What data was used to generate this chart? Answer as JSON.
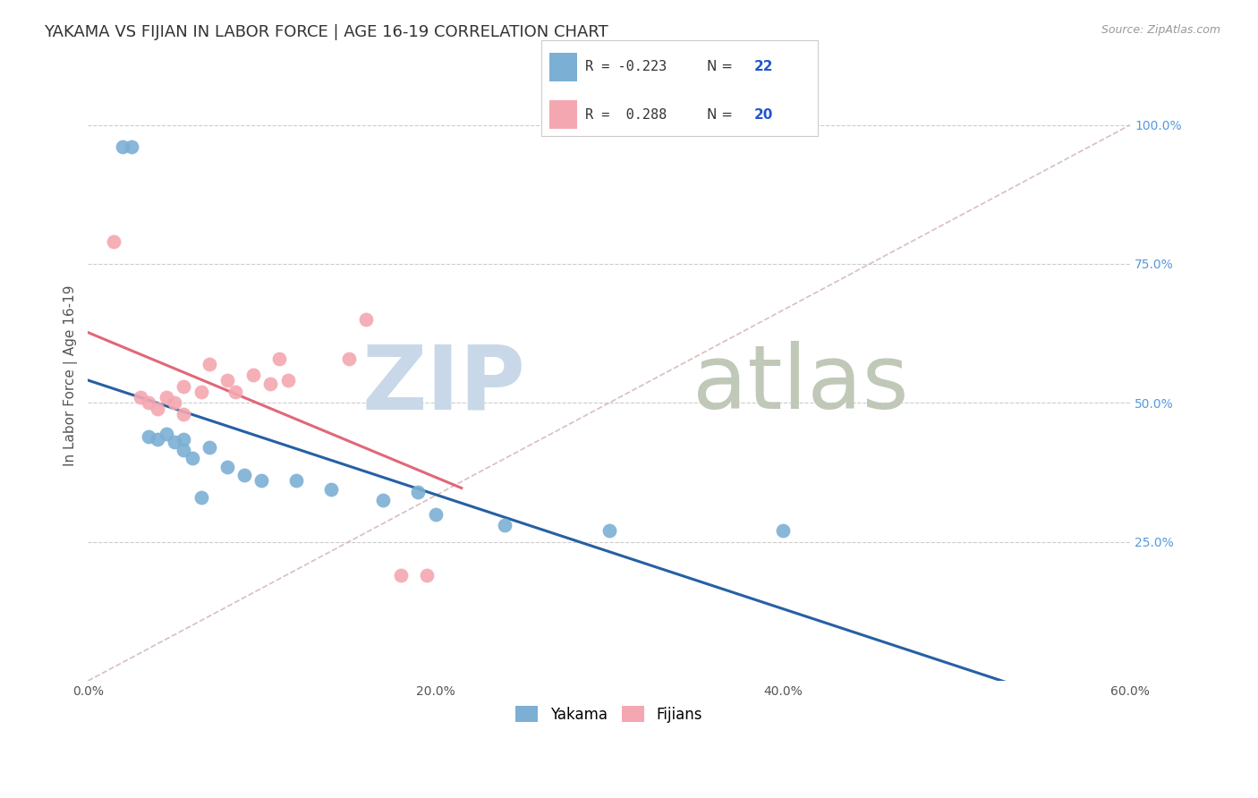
{
  "title": "YAKAMA VS FIJIAN IN LABOR FORCE | AGE 16-19 CORRELATION CHART",
  "source": "Source: ZipAtlas.com",
  "xlabel_vals": [
    0.0,
    20.0,
    40.0,
    60.0
  ],
  "ylabel_vals": [
    25.0,
    50.0,
    75.0,
    100.0
  ],
  "ylabel_label": "In Labor Force | Age 16-19",
  "xlim": [
    0.0,
    60.0
  ],
  "ylim": [
    0.0,
    110.0
  ],
  "yakama_R": -0.223,
  "yakama_N": 22,
  "fijian_R": 0.288,
  "fijian_N": 20,
  "yakama_color": "#7bafd4",
  "fijian_color": "#f4a7b0",
  "yakama_line_color": "#2660a4",
  "fijian_line_color": "#e06878",
  "diagonal_color": "#d4b8b8",
  "background": "#ffffff",
  "watermark_zip": "ZIP",
  "watermark_atlas": "atlas",
  "watermark_color_zip": "#c8d8e8",
  "watermark_color_atlas": "#c0c8b8",
  "yakama_x": [
    2.0,
    2.5,
    3.5,
    4.0,
    4.5,
    5.0,
    5.5,
    5.5,
    6.0,
    6.5,
    7.0,
    8.0,
    9.0,
    10.0,
    12.0,
    14.0,
    17.0,
    19.0,
    20.0,
    24.0,
    30.0,
    40.0
  ],
  "yakama_y": [
    96.0,
    96.0,
    44.0,
    43.5,
    44.5,
    43.0,
    43.5,
    41.5,
    40.0,
    33.0,
    42.0,
    38.5,
    37.0,
    36.0,
    36.0,
    34.5,
    32.5,
    34.0,
    30.0,
    28.0,
    27.0,
    27.0
  ],
  "fijian_x": [
    1.5,
    3.0,
    3.5,
    4.0,
    4.5,
    5.0,
    5.5,
    5.5,
    6.5,
    7.0,
    8.0,
    8.5,
    9.5,
    10.5,
    11.0,
    11.5,
    15.0,
    16.0,
    18.0,
    19.5
  ],
  "fijian_y": [
    79.0,
    51.0,
    50.0,
    49.0,
    51.0,
    50.0,
    53.0,
    48.0,
    52.0,
    57.0,
    54.0,
    52.0,
    55.0,
    53.5,
    58.0,
    54.0,
    58.0,
    65.0,
    19.0,
    19.0
  ],
  "legend_fontsize": 12,
  "title_fontsize": 13,
  "axis_label_fontsize": 11,
  "tick_fontsize": 10,
  "source_fontsize": 9
}
